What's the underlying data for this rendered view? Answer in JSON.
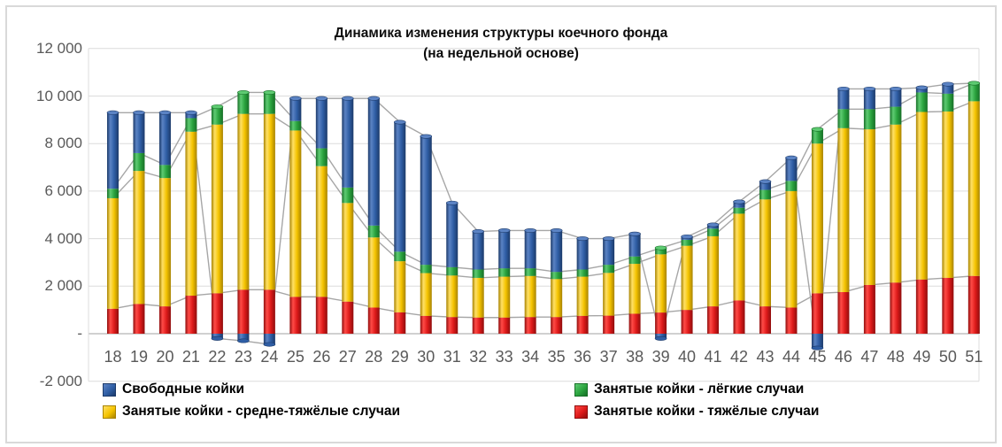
{
  "title": {
    "line1": "Динамика изменения структуры коечного фонда",
    "line2": "(на недельной основе)"
  },
  "y_axis": {
    "ticks": [
      {
        "label": "12 000",
        "value": 12000
      },
      {
        "label": "10 000",
        "value": 10000
      },
      {
        "label": "8 000",
        "value": 8000
      },
      {
        "label": "6 000",
        "value": 6000
      },
      {
        "label": "4 000",
        "value": 4000
      },
      {
        "label": "2 000",
        "value": 2000
      },
      {
        "label": "-",
        "value": 0
      },
      {
        "label": "-2 000",
        "value": -2000
      }
    ]
  },
  "legend": {
    "items": [
      {
        "series_key": "free",
        "label": "Свободные койки",
        "position": "row1-left"
      },
      {
        "series_key": "mild",
        "label": "Занятые койки - лёгкие случаи",
        "position": "row1-right"
      },
      {
        "series_key": "moderate",
        "label": "Занятые койки - средне-тяжёлые случаи",
        "position": "row2-left"
      },
      {
        "series_key": "severe",
        "label": "Занятые койки - тяжёлые случаи",
        "position": "row2-right"
      }
    ]
  },
  "chart_data": {
    "type": "bar",
    "stacked": true,
    "title": "Динамика изменения структуры коечного фонда (на недельной основе)",
    "xlabel": "",
    "ylabel": "",
    "ylim": [
      -2000,
      12000
    ],
    "grid": "horizontal",
    "legend_position": "bottom",
    "series_lines_color": "#a6a6a6",
    "gridline_color": "#dcdcdc",
    "zero_axis_color": "#b3b3b3",
    "tick_label_color": "#595959",
    "categories": [
      "18",
      "19",
      "20",
      "21",
      "22",
      "23",
      "24",
      "25",
      "26",
      "27",
      "28",
      "29",
      "30",
      "31",
      "32",
      "33",
      "34",
      "35",
      "36",
      "37",
      "38",
      "39",
      "40",
      "41",
      "42",
      "43",
      "44",
      "45",
      "46",
      "47",
      "48",
      "49",
      "50",
      "51"
    ],
    "series": [
      {
        "key": "severe",
        "name": "Занятые койки - тяжёлые случаи",
        "colors": {
          "light": "#ff4b47",
          "mid": "#dd1a1a",
          "dark": "#8f0d0d"
        },
        "values": [
          1050,
          1250,
          1150,
          1600,
          1700,
          1850,
          1850,
          1550,
          1550,
          1350,
          1100,
          900,
          750,
          700,
          680,
          680,
          700,
          700,
          750,
          760,
          840,
          890,
          1000,
          1150,
          1400,
          1150,
          1100,
          1700,
          1750,
          2050,
          2150,
          2280,
          2350,
          2430
        ]
      },
      {
        "key": "moderate",
        "name": "Занятые койки - средне-тяжёлые случаи",
        "colors": {
          "light": "#ffe066",
          "mid": "#f5c400",
          "dark": "#a88300"
        },
        "values": [
          4650,
          5600,
          5400,
          6900,
          7100,
          7400,
          7400,
          7000,
          5500,
          4150,
          2950,
          2150,
          1800,
          1750,
          1670,
          1720,
          1730,
          1600,
          1650,
          1800,
          2100,
          2450,
          2700,
          2950,
          3650,
          4500,
          4900,
          6300,
          6900,
          6550,
          6650,
          7050,
          7000,
          7350
        ]
      },
      {
        "key": "mild",
        "name": "Занятые койки - лёгкие случаи",
        "colors": {
          "light": "#5ecb72",
          "mid": "#2aa33e",
          "dark": "#176f27"
        },
        "values": [
          400,
          750,
          550,
          570,
          750,
          900,
          900,
          400,
          750,
          650,
          500,
          400,
          350,
          350,
          350,
          350,
          320,
          300,
          300,
          340,
          310,
          270,
          250,
          320,
          250,
          400,
          430,
          600,
          800,
          850,
          750,
          820,
          750,
          760
        ]
      },
      {
        "key": "free",
        "name": "Свободные койки",
        "colors": {
          "light": "#5b83c4",
          "mid": "#2f5ea5",
          "dark": "#1c3a69"
        },
        "values": [
          3200,
          1700,
          2200,
          230,
          -200,
          -300,
          -450,
          950,
          2100,
          3750,
          5350,
          5450,
          5400,
          2700,
          1600,
          1590,
          1590,
          1740,
          1300,
          1100,
          950,
          -200,
          130,
          160,
          250,
          350,
          970,
          -600,
          850,
          850,
          750,
          200,
          400,
          0
        ]
      }
    ]
  }
}
